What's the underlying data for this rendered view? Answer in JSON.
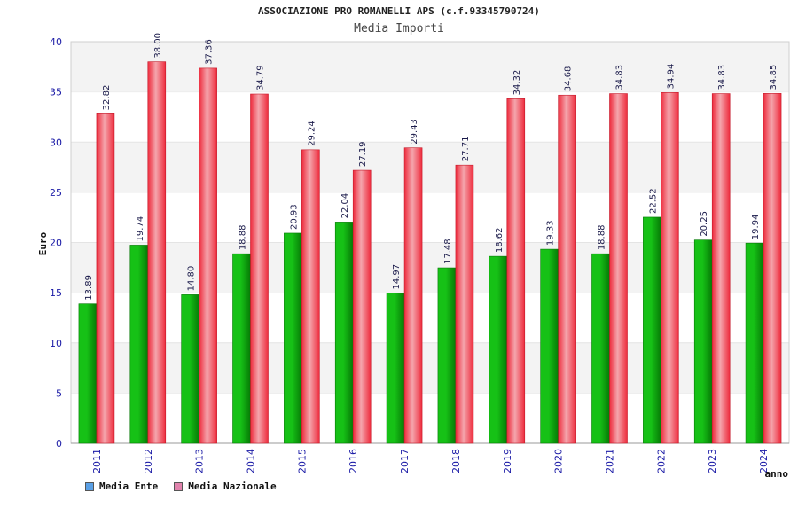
{
  "colors": {
    "ente": "#16c116",
    "ente_dark": "#067a06",
    "nazionale": "#ee2b3c",
    "nazionale_light": "#f4a6ad",
    "legend_ente": "#5aa0e6",
    "legend_nazionale": "#e183ad",
    "axis_text": "#1a1aa6",
    "band": "#f3f3f3"
  },
  "chart_data": {
    "type": "bar",
    "title": "ASSOCIAZIONE PRO ROMANELLI APS (c.f.93345790724)",
    "subtitle": "Media Importi",
    "xlabel": "anno",
    "ylabel": "Euro",
    "ylim": [
      0,
      40
    ],
    "yticks": [
      0,
      5,
      10,
      15,
      20,
      25,
      30,
      35,
      40
    ],
    "categories": [
      "2011",
      "2012",
      "2013",
      "2014",
      "2015",
      "2016",
      "2017",
      "2018",
      "2019",
      "2020",
      "2021",
      "2022",
      "2023",
      "2024"
    ],
    "series": [
      {
        "name": "Media Ente",
        "values": [
          13.89,
          19.74,
          14.8,
          18.88,
          20.93,
          22.04,
          14.97,
          17.48,
          18.62,
          19.33,
          18.88,
          22.52,
          20.25,
          19.94
        ],
        "labels": [
          "13.89",
          "19.74",
          "14.80",
          "18.88",
          "20.93",
          "22.04",
          "14.97",
          "17.48",
          "18.62",
          "19.33",
          "18.88",
          "22.52",
          "20.25",
          "19.94"
        ]
      },
      {
        "name": "Media Nazionale",
        "values": [
          32.82,
          38.0,
          37.36,
          34.79,
          29.24,
          27.19,
          29.43,
          27.71,
          34.32,
          34.68,
          34.83,
          34.94,
          34.83,
          34.85
        ],
        "labels": [
          "32.82",
          "38.00",
          "37.36",
          "34.79",
          "29.24",
          "27.19",
          "29.43",
          "27.71",
          "34.32",
          "34.68",
          "34.83",
          "34.94",
          "34.83",
          "34.85"
        ]
      }
    ],
    "legend_position": "bottom-left"
  }
}
